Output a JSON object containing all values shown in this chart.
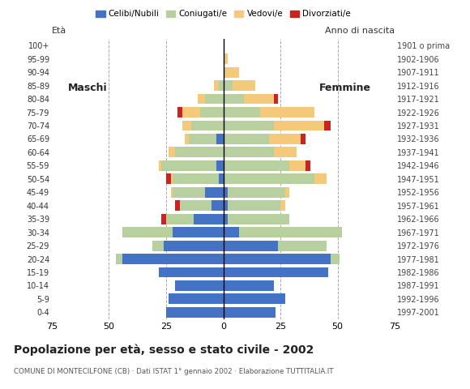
{
  "age_groups": [
    "0-4",
    "5-9",
    "10-14",
    "15-19",
    "20-24",
    "25-29",
    "30-34",
    "35-39",
    "40-44",
    "45-49",
    "50-54",
    "55-59",
    "60-64",
    "65-69",
    "70-74",
    "75-79",
    "80-84",
    "85-89",
    "90-94",
    "95-99",
    "100+"
  ],
  "birth_years": [
    "1997-2001",
    "1992-1996",
    "1987-1991",
    "1982-1986",
    "1977-1981",
    "1972-1976",
    "1967-1971",
    "1962-1966",
    "1957-1961",
    "1952-1956",
    "1947-1951",
    "1942-1946",
    "1937-1941",
    "1932-1936",
    "1927-1931",
    "1922-1926",
    "1917-1921",
    "1912-1916",
    "1907-1911",
    "1902-1906",
    "1901 o prima"
  ],
  "males": {
    "celibe": [
      25,
      24,
      21,
      28,
      44,
      26,
      22,
      13,
      5,
      8,
      2,
      3,
      0,
      3,
      0,
      0,
      0,
      0,
      0,
      0,
      0
    ],
    "coniugato": [
      0,
      0,
      0,
      0,
      3,
      5,
      22,
      12,
      14,
      14,
      20,
      24,
      21,
      12,
      14,
      10,
      8,
      2,
      0,
      0,
      0
    ],
    "vedovo": [
      0,
      0,
      0,
      0,
      0,
      0,
      0,
      0,
      0,
      1,
      1,
      1,
      3,
      2,
      4,
      8,
      3,
      2,
      0,
      0,
      0
    ],
    "divorziato": [
      0,
      0,
      0,
      0,
      0,
      0,
      0,
      2,
      2,
      0,
      2,
      0,
      0,
      0,
      0,
      2,
      0,
      0,
      0,
      0,
      0
    ]
  },
  "females": {
    "nubile": [
      23,
      27,
      22,
      46,
      47,
      24,
      7,
      2,
      2,
      2,
      0,
      0,
      0,
      0,
      0,
      0,
      0,
      0,
      0,
      0,
      0
    ],
    "coniugata": [
      0,
      0,
      0,
      0,
      4,
      21,
      45,
      27,
      23,
      25,
      40,
      29,
      22,
      20,
      22,
      16,
      9,
      4,
      1,
      0,
      0
    ],
    "vedova": [
      0,
      0,
      0,
      0,
      0,
      0,
      0,
      0,
      2,
      2,
      5,
      7,
      10,
      14,
      22,
      24,
      13,
      10,
      6,
      2,
      0
    ],
    "divorziata": [
      0,
      0,
      0,
      0,
      0,
      0,
      0,
      0,
      0,
      0,
      0,
      2,
      0,
      2,
      3,
      0,
      2,
      0,
      0,
      0,
      0
    ]
  },
  "colors": {
    "celibe_nubile": "#4472c4",
    "coniugato_a": "#b8cfa0",
    "vedovo_a": "#f5c97a",
    "divorziato_a": "#cc2222"
  },
  "xlim": 75,
  "title": "Popolazione per età, sesso e stato civile - 2002",
  "subtitle": "COMUNE DI MONTECILFONE (CB) · Dati ISTAT 1° gennaio 2002 · Elaborazione TUTTITALIA.IT",
  "label_eta": "Età",
  "label_anno": "Anno di nascita",
  "label_maschi": "Maschi",
  "label_femmine": "Femmine",
  "background_color": "#ffffff",
  "grid_color": "#aaaaaa",
  "legend_labels": [
    "Celibi/Nubili",
    "Coniugati/e",
    "Vedovi/e",
    "Divorziati/e"
  ]
}
